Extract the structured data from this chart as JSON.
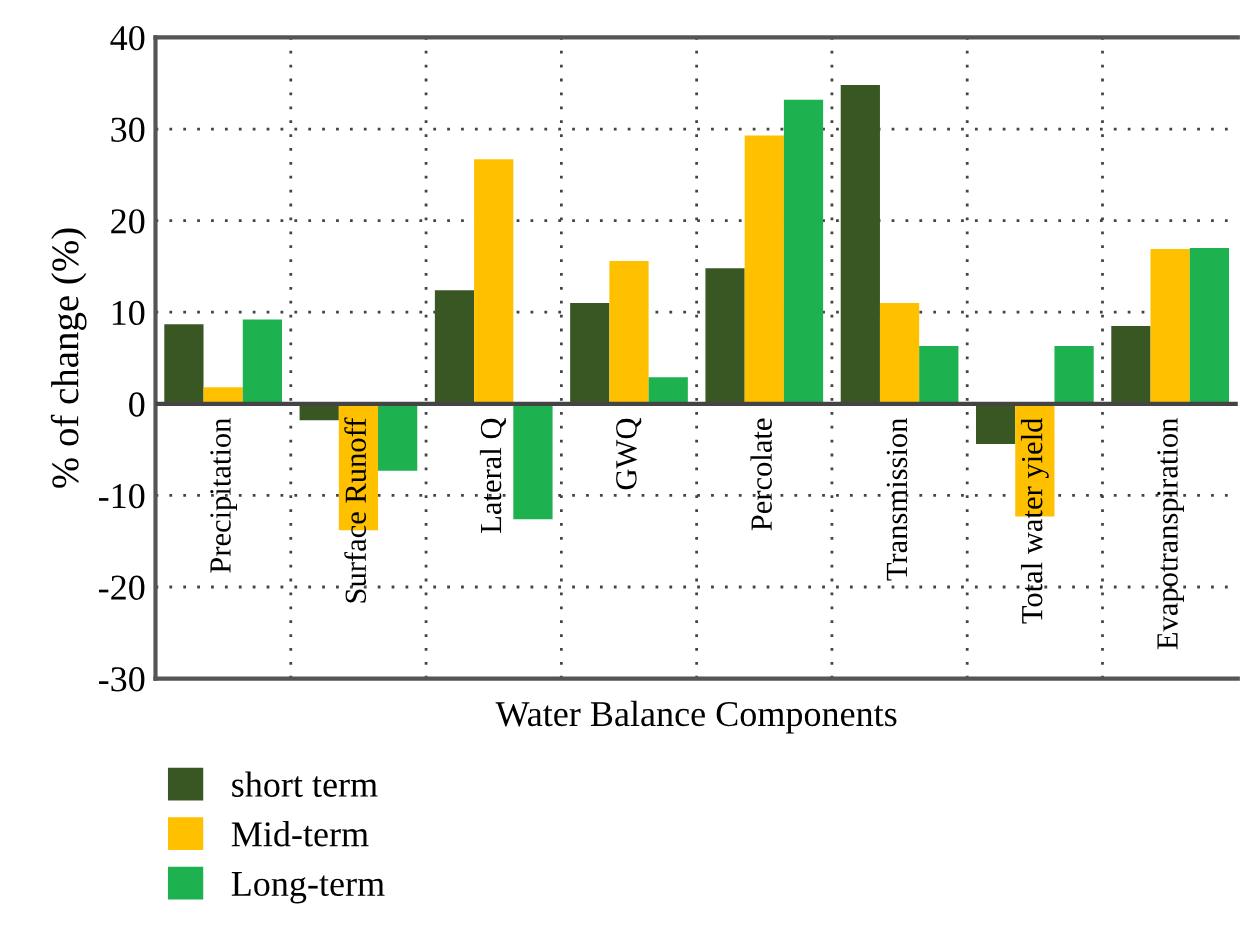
{
  "chart_data": {
    "type": "bar",
    "xlabel": "Water Balance Components",
    "ylabel": "% of change (%)",
    "categories": [
      "Precipitation",
      "Surface Runoff",
      "Lateral Q",
      "GWQ",
      "Percolate",
      "Transmission",
      "Total water yield",
      "Evapotranspiration"
    ],
    "series": [
      {
        "name": "short term",
        "color": "#385723",
        "values": [
          8.7,
          -1.8,
          12.4,
          11.0,
          14.8,
          34.8,
          -4.4,
          8.5
        ]
      },
      {
        "name": "Mid-term",
        "color": "#ffc000",
        "values": [
          1.8,
          -13.8,
          26.7,
          15.6,
          29.3,
          11.0,
          -12.3,
          16.9
        ]
      },
      {
        "name": "Long-term",
        "color": "#1db14f",
        "values": [
          9.2,
          -7.3,
          -12.6,
          2.9,
          33.2,
          6.3,
          6.3,
          17.0
        ]
      }
    ],
    "ylim": [
      -30,
      40
    ],
    "yticks": [
      -30,
      -20,
      -10,
      0,
      10,
      20,
      30,
      40
    ],
    "grid": true,
    "legend": "bottom left"
  }
}
